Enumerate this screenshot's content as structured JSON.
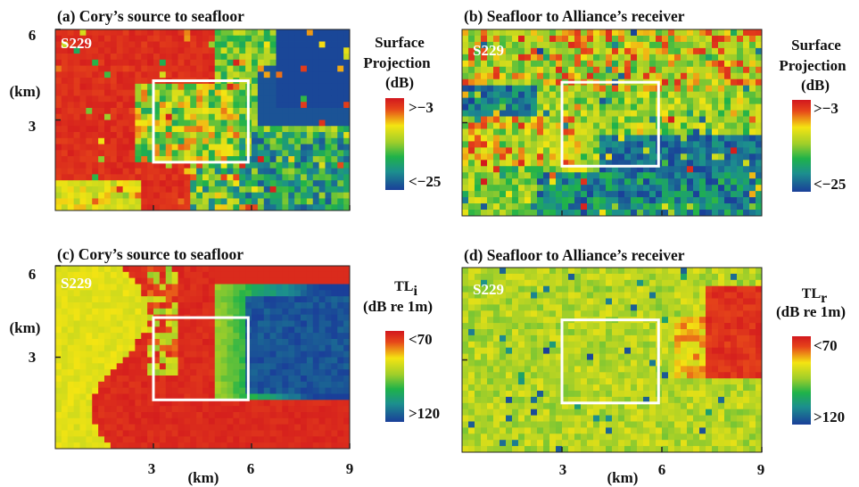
{
  "chart_data": [
    {
      "type": "heatmap",
      "title": "(a) Cory’s source to seafloor",
      "tag": "S229",
      "x_ticks": [
        {
          "value": 3,
          "label": "3"
        },
        {
          "value": 6,
          "label": "6"
        },
        {
          "value": 9,
          "label": "9"
        }
      ],
      "y_ticks": [
        {
          "value": 6,
          "label": "6"
        },
        {
          "value": 3,
          "label": "3"
        }
      ],
      "ylabel": "(km)",
      "xlim": [
        0,
        9
      ],
      "ylim": [
        0,
        6
      ],
      "box": {
        "x0": 3,
        "x1": 5.9,
        "y0": 1.6,
        "y1": 4.3
      },
      "colorbar": {
        "label_lines": [
          "Surface",
          "Projection",
          "(dB)"
        ],
        "max_label": ">−3",
        "min_label": "<−25",
        "range": [
          -25,
          -3
        ],
        "palette": [
          "#d2171e",
          "#f4e412",
          "#1fb24a",
          "#1a3f99"
        ]
      },
      "regions": {
        "kind": "surface-a"
      }
    },
    {
      "type": "heatmap",
      "title": "(b) Seafloor to Alliance’s receiver",
      "tag": "S229",
      "x_ticks": [
        {
          "value": 3,
          "label": ""
        },
        {
          "value": 6,
          "label": ""
        }
      ],
      "y_ticks": [
        {
          "value": 3,
          "label": ""
        }
      ],
      "xlim": [
        0,
        9
      ],
      "ylim": [
        0,
        6
      ],
      "box": {
        "x0": 3,
        "x1": 5.9,
        "y0": 1.6,
        "y1": 4.3
      },
      "colorbar": {
        "label_lines": [
          "Surface",
          "Projection",
          "(dB)"
        ],
        "max_label": ">−3",
        "min_label": "<−25",
        "range": [
          -25,
          -3
        ],
        "palette": [
          "#d2171e",
          "#f4e412",
          "#1fb24a",
          "#1a3f99"
        ]
      },
      "regions": {
        "kind": "surface-b"
      }
    },
    {
      "type": "heatmap",
      "title": "(c) Cory’s source to seafloor",
      "tag": "S229",
      "x_ticks": [
        {
          "value": 3,
          "label": "3"
        },
        {
          "value": 6,
          "label": "6"
        },
        {
          "value": 9,
          "label": "9"
        }
      ],
      "y_ticks": [
        {
          "value": 6,
          "label": "6"
        },
        {
          "value": 3,
          "label": "3"
        }
      ],
      "xlabel": "(km)",
      "ylabel": "(km)",
      "xlim": [
        0,
        9
      ],
      "ylim": [
        0,
        6
      ],
      "box": {
        "x0": 3,
        "x1": 5.9,
        "y0": 1.6,
        "y1": 4.3
      },
      "colorbar": {
        "label_main": "TL",
        "label_sub": "i",
        "label_unit": "(dB re 1m)",
        "max_label": "<70",
        "min_label": ">120",
        "range": [
          70,
          120
        ],
        "palette": [
          "#d2171e",
          "#f4e412",
          "#1fb24a",
          "#1a3f99"
        ]
      },
      "regions": {
        "kind": "tl-c"
      }
    },
    {
      "type": "heatmap",
      "title": "(d) Seafloor to Alliance’s receiver",
      "tag": "S229",
      "x_ticks": [
        {
          "value": 3,
          "label": "3"
        },
        {
          "value": 6,
          "label": "6"
        },
        {
          "value": 9,
          "label": "9"
        }
      ],
      "y_ticks": [
        {
          "value": 3,
          "label": ""
        }
      ],
      "xlabel": "(km)",
      "xlim": [
        0,
        9
      ],
      "ylim": [
        0,
        6
      ],
      "box": {
        "x0": 3,
        "x1": 5.9,
        "y0": 1.6,
        "y1": 4.3
      },
      "colorbar": {
        "label_main": "TL",
        "label_sub": "r",
        "label_unit": "(dB re 1m)",
        "max_label": "<70",
        "min_label": ">120",
        "range": [
          70,
          120
        ],
        "palette": [
          "#d2171e",
          "#f4e412",
          "#1fb24a",
          "#1a3f99"
        ]
      },
      "regions": {
        "kind": "tl-d"
      }
    }
  ]
}
